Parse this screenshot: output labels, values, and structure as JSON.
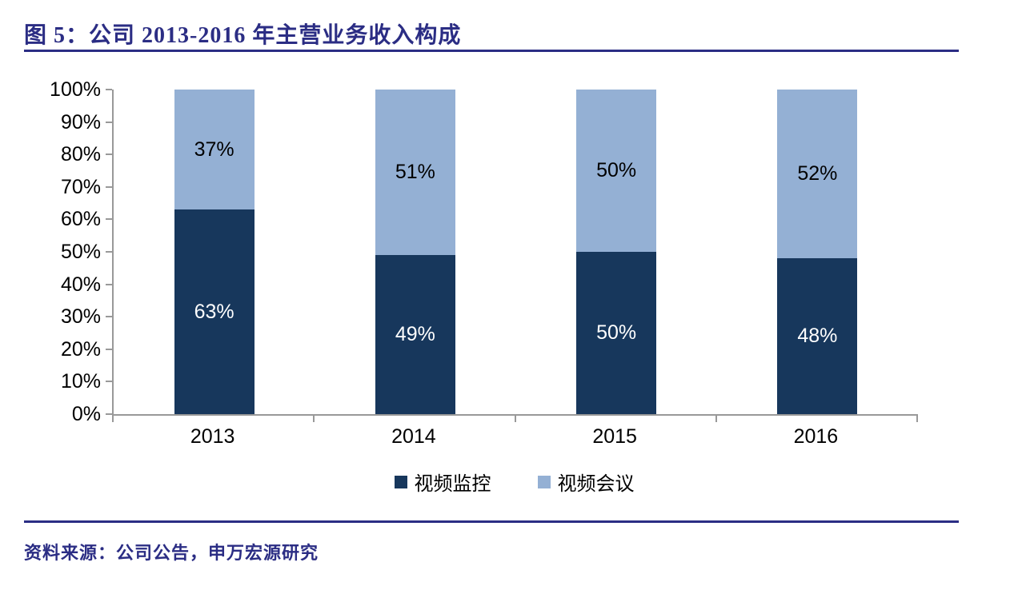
{
  "header": {
    "title": "图 5：公司 2013-2016 年主营业务收入构成"
  },
  "chart_data": {
    "type": "bar",
    "stacked": true,
    "percent_stacked": true,
    "title": "公司 2013-2016 年主营业务收入构成",
    "categories": [
      "2013",
      "2014",
      "2015",
      "2016"
    ],
    "series": [
      {
        "name": "视频监控",
        "color": "#17375C",
        "label_color": "#FFFFFF",
        "values": [
          63,
          49,
          50,
          48
        ],
        "labels": [
          "63%",
          "49%",
          "50%",
          "48%"
        ]
      },
      {
        "name": "视频会议",
        "color": "#94B0D4",
        "label_color": "#000000",
        "values": [
          37,
          51,
          50,
          52
        ],
        "labels": [
          "37%",
          "51%",
          "50%",
          "52%"
        ]
      }
    ],
    "y_axis": {
      "min": 0,
      "max": 100,
      "step": 10,
      "tick_suffix": "%",
      "tick_labels": [
        "0%",
        "10%",
        "20%",
        "30%",
        "40%",
        "50%",
        "60%",
        "70%",
        "80%",
        "90%",
        "100%"
      ]
    },
    "xlabel": "",
    "ylabel": "",
    "grid": false,
    "legend_position": "bottom"
  },
  "footer": {
    "source": "资料来源：公司公告，申万宏源研究"
  },
  "colors": {
    "accent": "#2B2D84",
    "axis": "#999999",
    "series_dark": "#17375C",
    "series_light": "#94B0D4"
  }
}
